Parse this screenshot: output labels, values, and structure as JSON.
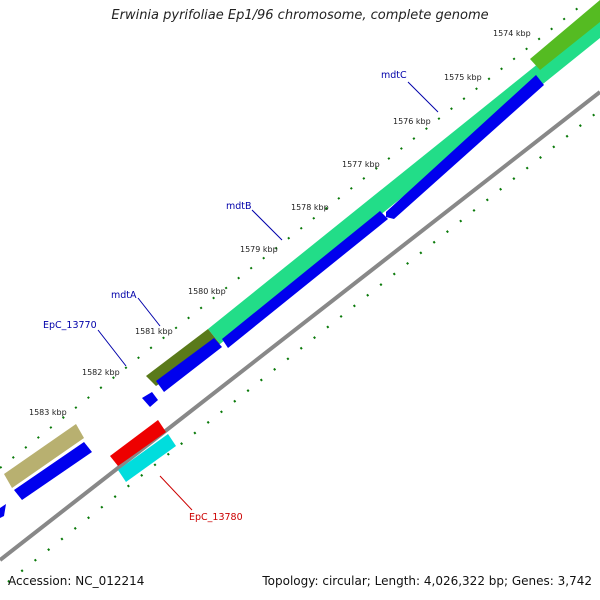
{
  "title": "Erwinia pyrifoliae Ep1/96 chromosome, complete genome",
  "footer": {
    "accession": "Accession: NC_012214",
    "summary": "Topology: circular; Length: 4,026,322 bp; Genes: 3,742"
  },
  "ticks": [
    "1574 kbp",
    "1575 kbp",
    "1576 kbp",
    "1577 kbp",
    "1578 kbp",
    "1579 kbp",
    "1580 kbp",
    "1581 kbp",
    "1582 kbp",
    "1583 kbp"
  ],
  "genes": [
    {
      "name": "mdtC",
      "color": "#0000aa"
    },
    {
      "name": "mdtB",
      "color": "#0000aa"
    },
    {
      "name": "mdtA",
      "color": "#0000aa"
    },
    {
      "name": "EpC_13770",
      "color": "#0000aa"
    },
    {
      "name": "EpC_13780",
      "color": "#cc0000"
    }
  ],
  "colors": {
    "backbone": "#888888",
    "cds_forward": "#0000ee",
    "cds_reverse": "#ee0000",
    "cog_green": "#22dd88",
    "cog_olive": "#5a7a1a",
    "cog_khaki": "#b8b070",
    "cog_cyan": "#00dddd",
    "dots": "#0a7a0a",
    "ticks": "#0a7a0a"
  }
}
